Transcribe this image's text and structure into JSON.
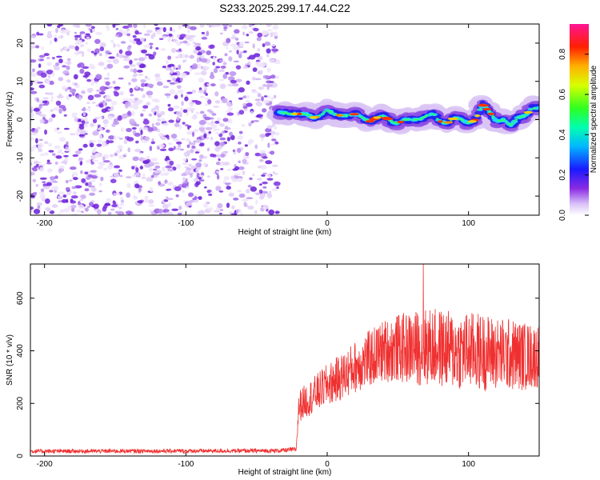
{
  "title": "S233.2025.299.17.44.C22",
  "chart_data": [
    {
      "type": "heatmap",
      "name": "spectrogram",
      "xlabel": "Height of straight line (km)",
      "ylabel": "Frequency (Hz)",
      "xlim": [
        -210,
        150
      ],
      "ylim": [
        -25,
        25
      ],
      "xticks": [
        -200,
        -100,
        0,
        100
      ],
      "yticks": [
        -20,
        -10,
        0,
        10,
        20
      ],
      "colorbar": {
        "label": "Normalized spectral amplitude",
        "range": [
          0,
          0.95
        ],
        "ticks": [
          0.0,
          0.2,
          0.4,
          0.6,
          0.8
        ],
        "tick_labels": [
          "0.0",
          "0.2",
          "0.4",
          "0.6",
          "0.8"
        ]
      },
      "noise_region_x": [
        -210,
        -35
      ],
      "signal_start_x": -35,
      "ridge_frequency": {
        "x": [
          -35,
          -25,
          -15,
          -10,
          -5,
          0,
          5,
          10,
          15,
          20,
          25,
          30,
          35,
          40,
          45,
          50,
          55,
          60,
          65,
          70,
          75,
          80,
          85,
          90,
          95,
          100,
          105,
          110,
          115,
          120,
          125,
          130,
          135,
          140,
          145,
          150
        ],
        "y": [
          2,
          1.5,
          1.5,
          0.5,
          1,
          2.5,
          1.5,
          1,
          1,
          1.5,
          0.5,
          -0.5,
          0.5,
          1,
          -0.5,
          -1,
          0,
          0,
          0,
          1,
          1.5,
          -0.5,
          -1,
          0.5,
          0,
          -1,
          0,
          4,
          2,
          -0.5,
          0,
          -1.5,
          0.5,
          1,
          3,
          3
        ]
      }
    },
    {
      "type": "line",
      "name": "snr",
      "xlabel": "Height of straight line (km)",
      "ylabel": "SNR (10 * v/v)",
      "xlim": [
        -210,
        150
      ],
      "ylim": [
        0,
        730
      ],
      "xticks": [
        -200,
        -100,
        0,
        100
      ],
      "yticks": [
        0,
        200,
        400,
        600
      ],
      "color": "#f03030",
      "series": [
        {
          "name": "SNR",
          "envelope_x": [
            -210,
            -35,
            -22,
            -20,
            -10,
            0,
            10,
            20,
            30,
            40,
            50,
            60,
            70,
            80,
            90,
            100,
            110,
            120,
            130,
            140,
            150
          ],
          "mean_y": [
            18,
            20,
            25,
            190,
            230,
            270,
            300,
            340,
            370,
            400,
            410,
            410,
            415,
            410,
            400,
            400,
            395,
            390,
            385,
            380,
            380
          ],
          "spread_y": [
            8,
            8,
            10,
            60,
            70,
            80,
            90,
            100,
            110,
            120,
            130,
            140,
            150,
            150,
            150,
            150,
            150,
            140,
            140,
            130,
            120
          ],
          "peak": {
            "x": 68,
            "y": 730
          }
        }
      ]
    }
  ]
}
